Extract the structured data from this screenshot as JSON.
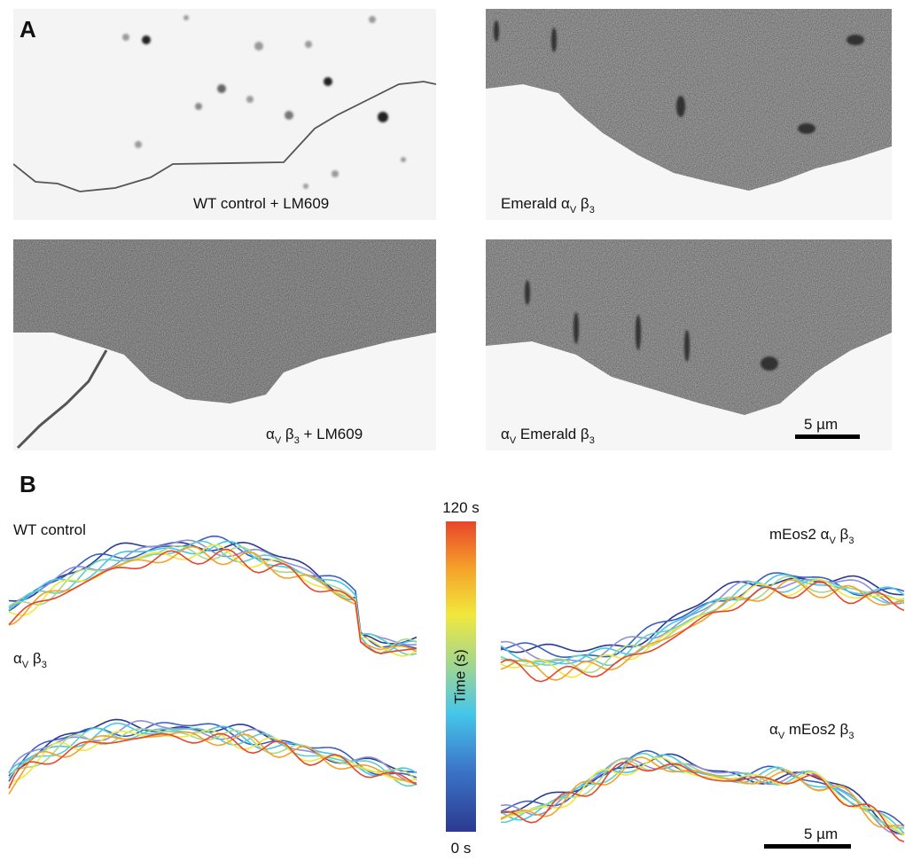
{
  "panel_a": {
    "letter": "A",
    "images": [
      {
        "label": [
          "WT control + LM609"
        ]
      },
      {
        "label": [
          "Emerald α",
          "V",
          " β",
          "3"
        ]
      },
      {
        "label": [
          "α",
          "V",
          " β",
          "3",
          " + LM609"
        ]
      },
      {
        "label": [
          "α",
          "V",
          " Emerald β",
          "3"
        ]
      }
    ],
    "scale_bar": "5 µm"
  },
  "panel_b": {
    "letter": "B",
    "colorbar": {
      "top": "120 s",
      "bottom": "0 s",
      "title": "Time (s)"
    },
    "traces": [
      {
        "label": [
          "WT control"
        ]
      },
      {
        "label": [
          "α",
          "V",
          " β",
          "3"
        ]
      },
      {
        "label": [
          "mEos2 α",
          "V",
          " β",
          "3"
        ]
      },
      {
        "label": [
          "α",
          "V",
          " mEos2 β",
          "3"
        ]
      }
    ],
    "scale_bar": "5 µm"
  }
}
